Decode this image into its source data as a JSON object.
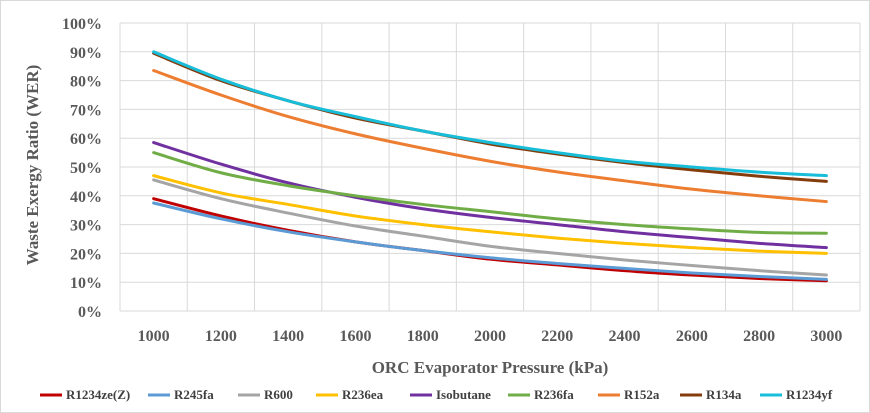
{
  "chart_data": {
    "type": "line",
    "xlabel": "ORC Evaporator Pressure (kPa)",
    "ylabel": "Waste Exergy Ratio (WER)",
    "x": [
      1000,
      1200,
      1400,
      1600,
      1800,
      2000,
      2200,
      2400,
      2600,
      2800,
      3000
    ],
    "x_ticks": [
      "1000",
      "1200",
      "1400",
      "1600",
      "1800",
      "2000",
      "2200",
      "2400",
      "2600",
      "2800",
      "3000"
    ],
    "y_ticks": [
      "0%",
      "10%",
      "20%",
      "30%",
      "40%",
      "50%",
      "60%",
      "70%",
      "80%",
      "90%",
      "100%"
    ],
    "xlim": [
      900,
      3100
    ],
    "ylim": [
      0,
      100
    ],
    "grid": true,
    "legend_position": "bottom",
    "series": [
      {
        "name": "R1234ze(Z)",
        "color": "#c00000",
        "values": [
          39,
          33,
          28,
          24,
          21,
          18,
          16,
          14,
          12.5,
          11.3,
          10.5
        ]
      },
      {
        "name": "R245fa",
        "color": "#5b9bd5",
        "values": [
          37.5,
          32,
          27.5,
          24,
          21,
          18.5,
          16.5,
          14.8,
          13.2,
          12,
          11
        ]
      },
      {
        "name": "R600",
        "color": "#a5a5a5",
        "values": [
          45.5,
          39,
          34,
          29.5,
          26,
          22.5,
          20,
          17.7,
          15.8,
          14,
          12.5
        ]
      },
      {
        "name": "R236ea",
        "color": "#ffc000",
        "values": [
          47,
          41,
          37,
          33,
          30,
          27.5,
          25.3,
          23.5,
          22,
          20.8,
          20
        ]
      },
      {
        "name": "Isobutane",
        "color": "#7030a0",
        "values": [
          58.5,
          51,
          44.5,
          39.5,
          35.5,
          32.5,
          30,
          27.5,
          25.5,
          23.5,
          22
        ]
      },
      {
        "name": "R236fa",
        "color": "#70ad47",
        "values": [
          55,
          48,
          43.5,
          40,
          37,
          34.5,
          32,
          30,
          28.5,
          27.3,
          27
        ]
      },
      {
        "name": "R152a",
        "color": "#ed7d31",
        "values": [
          83.5,
          75,
          67.5,
          61.5,
          56.5,
          52,
          48.3,
          45.2,
          42.3,
          40,
          38
        ]
      },
      {
        "name": "R134a",
        "color": "#843c0c",
        "values": [
          89.5,
          80,
          73,
          67,
          62.5,
          58,
          54.5,
          51.5,
          49,
          46.8,
          45
        ]
      },
      {
        "name": "R1234yf",
        "color": "#17bdd9",
        "values": [
          90,
          80.5,
          73,
          67.5,
          62.5,
          58.5,
          55,
          52,
          50,
          48.2,
          47
        ]
      }
    ]
  }
}
